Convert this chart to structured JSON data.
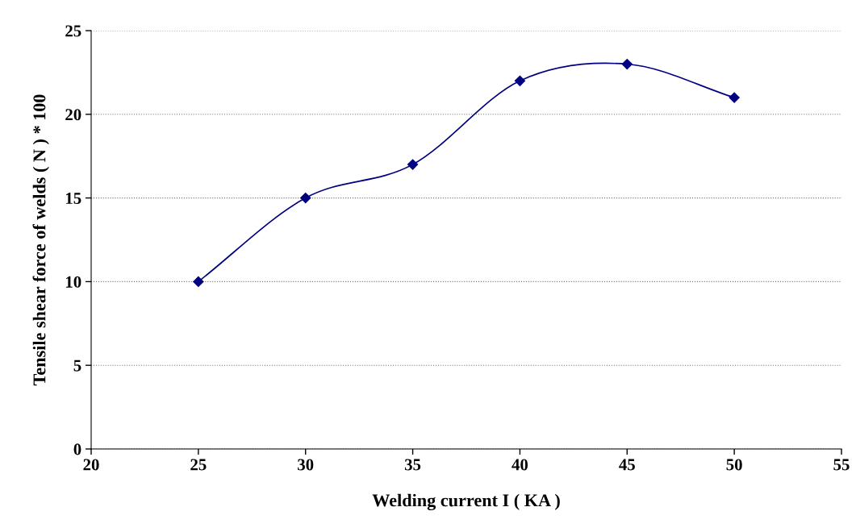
{
  "chart_data": {
    "type": "line",
    "xlabel": "Welding current I ( KA )",
    "ylabel": "Tensile shear force of welds ( N ) * 100",
    "x": [
      25,
      30,
      35,
      40,
      45,
      50
    ],
    "series": [
      {
        "color": "#000080",
        "values": [
          10,
          15,
          17,
          22,
          23,
          21
        ]
      }
    ],
    "xlim": [
      20,
      55
    ],
    "xticks": [
      20,
      25,
      30,
      35,
      40,
      45,
      50,
      55
    ],
    "ylim": [
      0,
      25
    ],
    "yticks": [
      0,
      5,
      10,
      15,
      20,
      25
    ],
    "grid": "y",
    "marker": "diamond",
    "line_style": "solid",
    "legend": false
  }
}
